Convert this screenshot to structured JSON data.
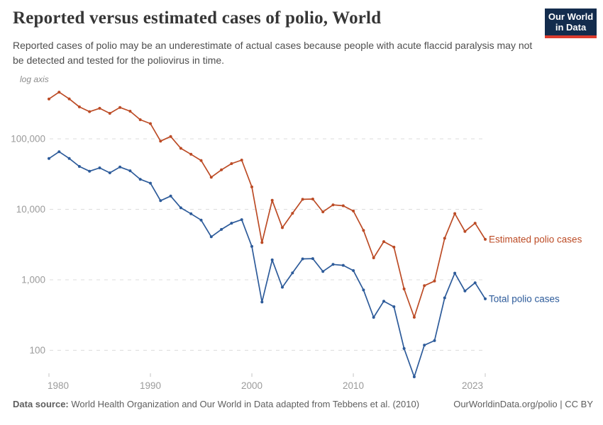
{
  "header": {
    "title": "Reported versus estimated cases of polio, World",
    "subtitle": "Reported cases of polio may be an underestimate of actual cases because people with acute flaccid paralysis may not be detected and tested for the poliovirus in time.",
    "logo": {
      "line1": "Our World",
      "line2": "in Data",
      "bg_color": "#132c4d",
      "accent_color": "#dc3c2e"
    }
  },
  "chart_data": {
    "type": "line",
    "y_scale": "log",
    "log_axis_label": "log axis",
    "grid": true,
    "legend_position": "right-of-line-ends",
    "x": [
      1980,
      1981,
      1982,
      1983,
      1984,
      1985,
      1986,
      1987,
      1988,
      1989,
      1990,
      1991,
      1992,
      1993,
      1994,
      1995,
      1996,
      1997,
      1998,
      1999,
      2000,
      2001,
      2002,
      2003,
      2004,
      2005,
      2006,
      2007,
      2008,
      2009,
      2010,
      2011,
      2012,
      2013,
      2014,
      2015,
      2016,
      2017,
      2018,
      2019,
      2020,
      2021,
      2022,
      2023
    ],
    "series": [
      {
        "name": "Estimated polio cases",
        "color": "#bc4b25",
        "values": [
          367864,
          459207,
          368445,
          284200,
          242900,
          270900,
          230300,
          278600,
          246757,
          186900,
          164388,
          92862,
          107842,
          73409,
          60445,
          49245,
          28518,
          36295,
          44443,
          49987,
          20797,
          3381,
          13426,
          5488,
          8785,
          13853,
          13979,
          9205,
          11564,
          11228,
          9464,
          5012,
          2051,
          3479,
          2905,
          742,
          294,
          826,
          959,
          3878,
          8701,
          4858,
          6356,
          3752
        ]
      },
      {
        "name": "Total polio cases",
        "color": "#2d5b9a",
        "values": [
          52552,
          65601,
          52635,
          40600,
          34700,
          38700,
          32900,
          39800,
          35251,
          26700,
          23484,
          13266,
          15406,
          10487,
          8635,
          7035,
          4074,
          5185,
          6349,
          7141,
          2971,
          483,
          1918,
          784,
          1255,
          1979,
          1997,
          1315,
          1652,
          1604,
          1352,
          716,
          293,
          497,
          415,
          106,
          42,
          118,
          137,
          554,
          1243,
          694,
          908,
          536
        ]
      }
    ],
    "y_ticks": [
      {
        "label": "100,000",
        "value": 100000
      },
      {
        "label": "10,000",
        "value": 10000
      },
      {
        "label": "1,000",
        "value": 1000
      },
      {
        "label": "100",
        "value": 100
      }
    ],
    "x_ticks": [
      1980,
      1990,
      2000,
      2010,
      2023
    ],
    "x_range": [
      1980,
      2023
    ],
    "y_labeled_range": [
      100,
      100000
    ]
  },
  "footer": {
    "source_label": "Data source:",
    "source_text": " World Health Organization and Our World in Data adapted from Tebbens et al. (2010)",
    "link_text": "OurWorldinData.org/polio | CC BY"
  }
}
